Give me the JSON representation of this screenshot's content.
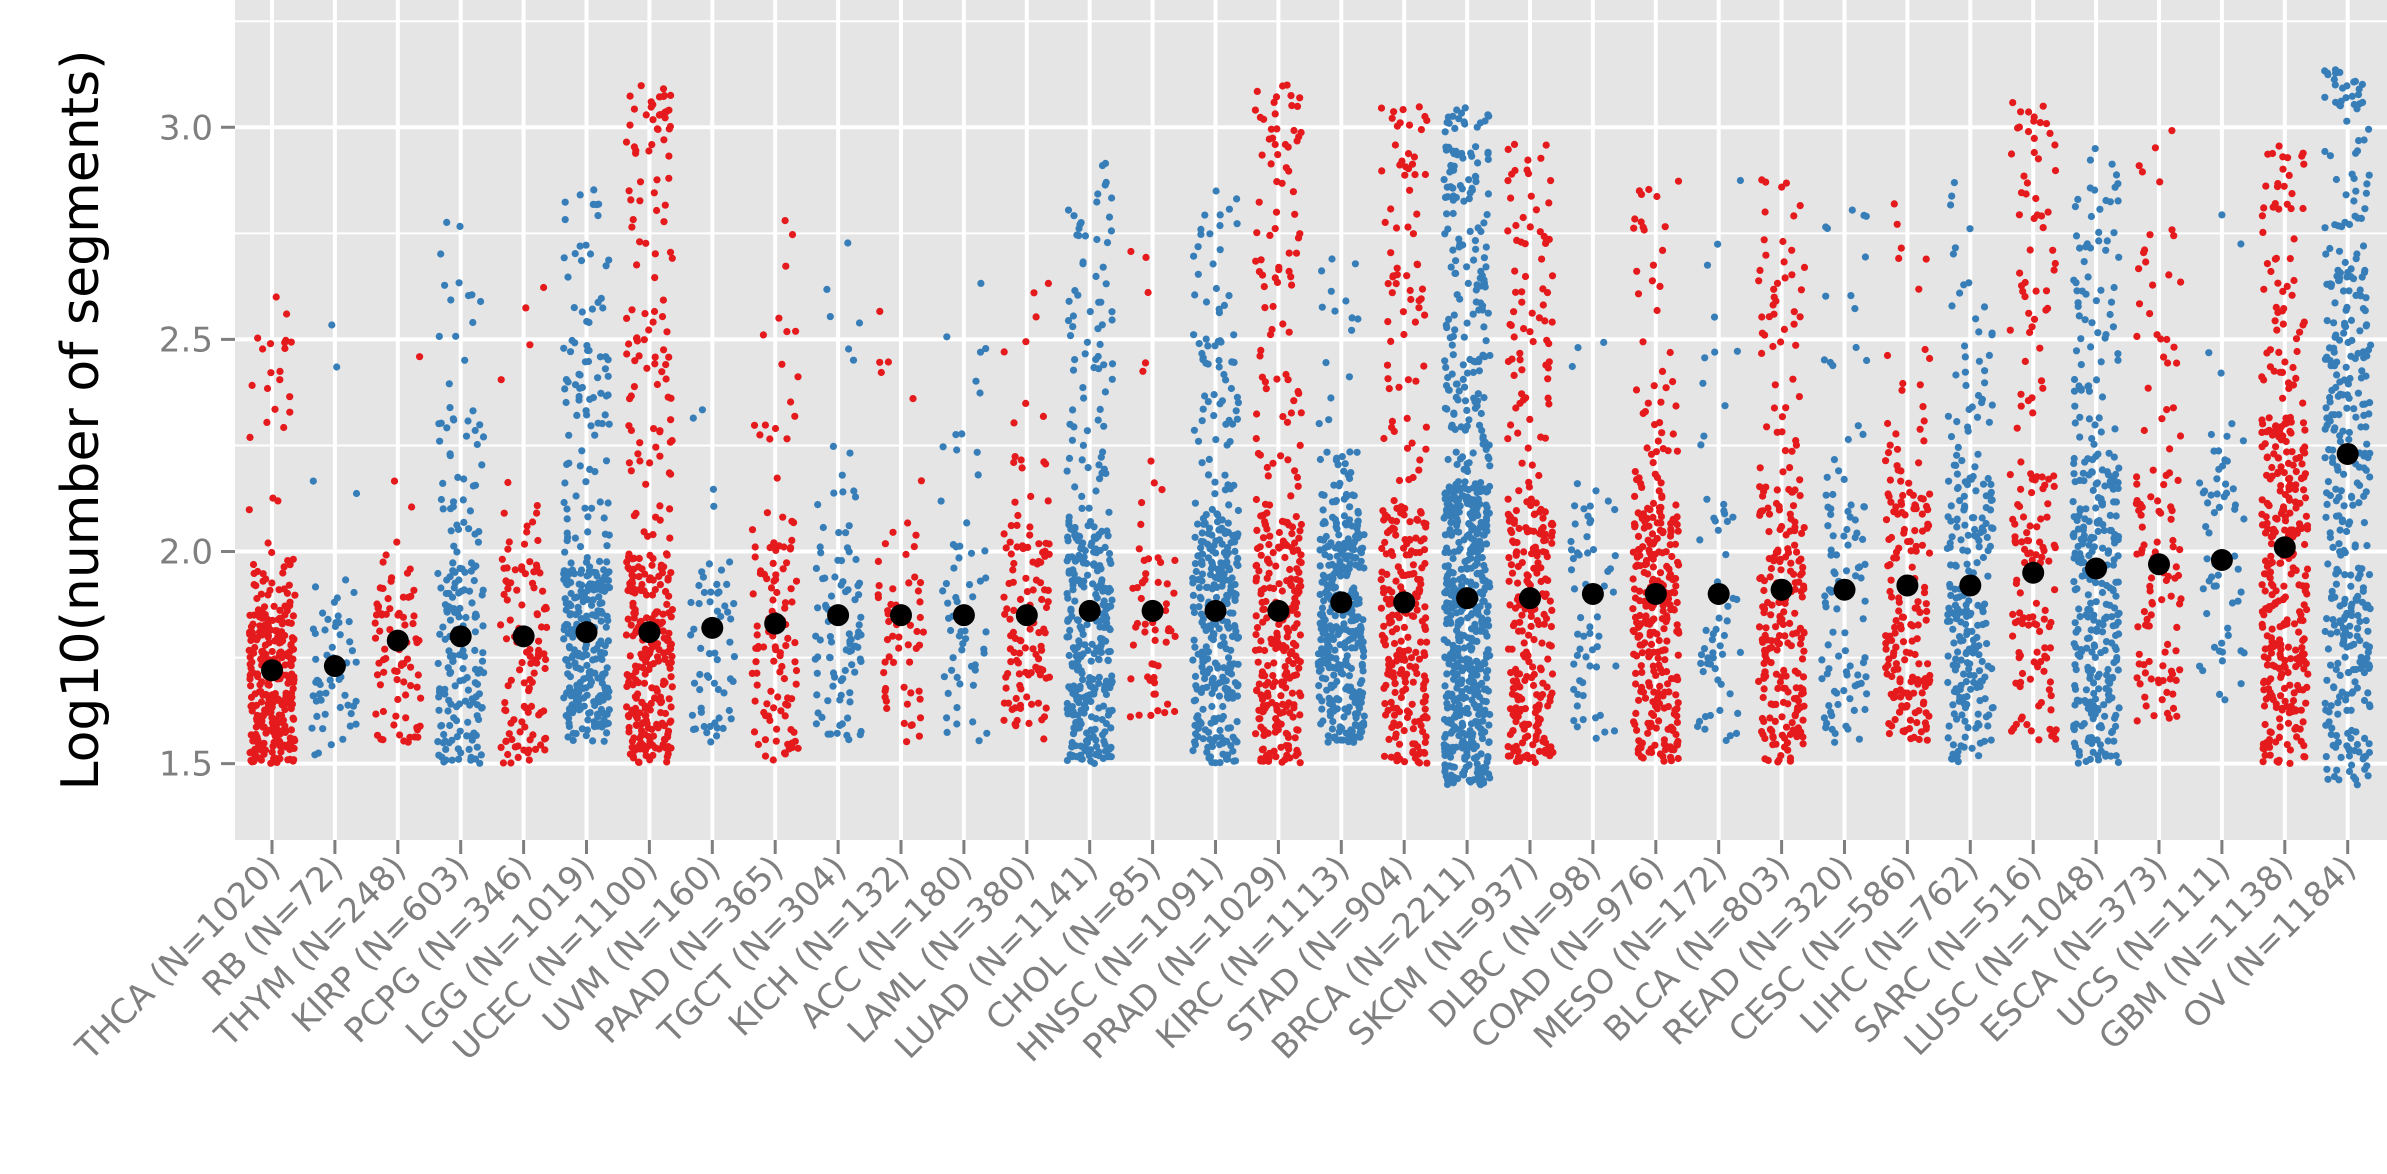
{
  "chart_data": {
    "type": "scatter",
    "title": "",
    "xlabel": "",
    "ylabel": "Log10(number of segments)",
    "ylim": [
      1.32,
      3.3
    ],
    "yticks": [
      1.5,
      2.0,
      2.5,
      3.0
    ],
    "ytick_labels": [
      "1.5",
      "2.0",
      "2.5",
      "3.0"
    ],
    "grid": true,
    "legend": "none",
    "point_colors": [
      "#e41a1c",
      "#377eb8"
    ],
    "median_color": "#000000",
    "panel_background": "#e5e5e5",
    "categories": [
      "THCA (N=1020)",
      "RB (N=72)",
      "THYM (N=248)",
      "KIRP (N=603)",
      "PCPG (N=346)",
      "LGG (N=1019)",
      "UCEC (N=1100)",
      "UVM (N=160)",
      "PAAD (N=365)",
      "TGCT (N=304)",
      "KICH (N=132)",
      "ACC (N=180)",
      "LAML (N=380)",
      "LUAD (N=1141)",
      "CHOL (N=85)",
      "HNSC (N=1091)",
      "PRAD (N=1029)",
      "KIRC (N=1113)",
      "STAD (N=904)",
      "BRCA (N=2211)",
      "SKCM (N=937)",
      "DLBC (N=98)",
      "COAD (N=976)",
      "MESO (N=172)",
      "BLCA (N=803)",
      "READ (N=320)",
      "CESC (N=586)",
      "LIHC (N=762)",
      "SARC (N=516)",
      "LUSC (N=1048)",
      "ESCA (N=373)",
      "UCS (N=111)",
      "GBM (N=1138)",
      "OV (N=1184)"
    ],
    "sample_counts": [
      1020,
      72,
      248,
      603,
      346,
      1019,
      1100,
      160,
      365,
      304,
      132,
      180,
      380,
      1141,
      85,
      1091,
      1029,
      1113,
      904,
      2211,
      937,
      98,
      976,
      172,
      803,
      320,
      586,
      762,
      516,
      1048,
      373,
      111,
      1138,
      1184
    ],
    "color_group": [
      "red",
      "blue",
      "red",
      "blue",
      "red",
      "blue",
      "red",
      "blue",
      "red",
      "blue",
      "red",
      "blue",
      "red",
      "blue",
      "red",
      "blue",
      "red",
      "blue",
      "red",
      "blue",
      "red",
      "blue",
      "red",
      "blue",
      "red",
      "blue",
      "red",
      "blue",
      "red",
      "blue",
      "red",
      "blue",
      "red",
      "blue"
    ],
    "median_values": [
      1.72,
      1.73,
      1.79,
      1.8,
      1.8,
      1.81,
      1.81,
      1.82,
      1.83,
      1.85,
      1.85,
      1.85,
      1.85,
      1.86,
      1.86,
      1.86,
      1.86,
      1.88,
      1.88,
      1.89,
      1.89,
      1.9,
      1.9,
      1.9,
      1.91,
      1.91,
      1.92,
      1.92,
      1.95,
      1.96,
      1.97,
      1.98,
      2.01,
      2.23
    ],
    "core_ranges": [
      [
        1.5,
        2.0
      ],
      [
        1.5,
        1.95
      ],
      [
        1.55,
        2.0
      ],
      [
        1.5,
        2.35
      ],
      [
        1.5,
        2.1
      ],
      [
        1.55,
        2.5
      ],
      [
        1.5,
        2.95
      ],
      [
        1.55,
        1.95
      ],
      [
        1.5,
        2.35
      ],
      [
        1.55,
        2.3
      ],
      [
        1.55,
        2.1
      ],
      [
        1.55,
        2.25
      ],
      [
        1.55,
        2.25
      ],
      [
        1.5,
        2.6
      ],
      [
        1.6,
        2.2
      ],
      [
        1.5,
        2.5
      ],
      [
        1.5,
        2.95
      ],
      [
        1.55,
        2.25
      ],
      [
        1.5,
        2.85
      ],
      [
        1.45,
        2.85
      ],
      [
        1.5,
        2.7
      ],
      [
        1.55,
        2.2
      ],
      [
        1.5,
        2.5
      ],
      [
        1.55,
        2.5
      ],
      [
        1.5,
        2.6
      ],
      [
        1.55,
        2.5
      ],
      [
        1.55,
        2.4
      ],
      [
        1.5,
        2.5
      ],
      [
        1.55,
        2.9
      ],
      [
        1.5,
        2.65
      ],
      [
        1.6,
        2.75
      ],
      [
        1.65,
        2.45
      ],
      [
        1.5,
        2.7
      ],
      [
        1.45,
        3.05
      ]
    ]
  }
}
